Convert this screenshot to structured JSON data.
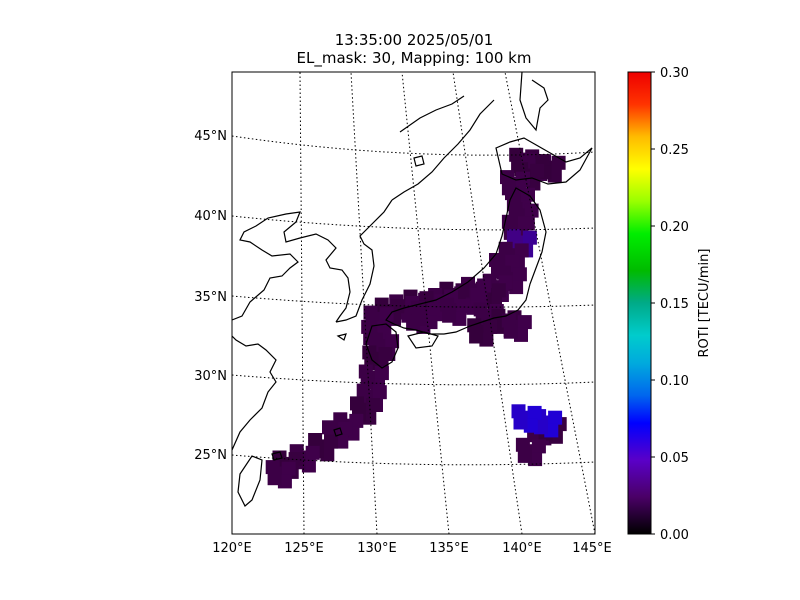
{
  "title": {
    "line1": "13:35:00 2025/05/01",
    "line2": "EL_mask: 30, Mapping: 100 km"
  },
  "chart_data": {
    "type": "heatmap",
    "map": {
      "lon_range": [
        120,
        145
      ],
      "lat_range": [
        20,
        49
      ],
      "lon_ticks": [
        "120°E",
        "125°E",
        "130°E",
        "135°E",
        "140°E",
        "145°E"
      ],
      "lat_ticks": [
        "25°N",
        "30°N",
        "35°N",
        "40°N",
        "45°N"
      ],
      "grid": true,
      "coastlines": true
    },
    "colorbar": {
      "label": "ROTI [TECU/min]",
      "range": [
        0.0,
        0.3
      ],
      "tick_labels": [
        "0.00",
        "0.05",
        "0.10",
        "0.15",
        "0.20",
        "0.25",
        "0.30"
      ],
      "colormap": "nipy_spectral"
    },
    "cells": [
      [
        141.2,
        43.4,
        0.02
      ],
      [
        142.0,
        43.1,
        0.03
      ],
      [
        143.0,
        43.0,
        0.02
      ],
      [
        141.5,
        42.5,
        0.02
      ],
      [
        140.5,
        42.0,
        0.03
      ],
      [
        140.8,
        41.0,
        0.03
      ],
      [
        141.0,
        40.0,
        0.03
      ],
      [
        140.5,
        39.2,
        0.03
      ],
      [
        140.8,
        38.3,
        0.04
      ],
      [
        140.2,
        37.5,
        0.03
      ],
      [
        139.5,
        36.8,
        0.03
      ],
      [
        140.0,
        36.0,
        0.03
      ],
      [
        139.0,
        35.5,
        0.03
      ],
      [
        138.5,
        35.0,
        0.02
      ],
      [
        137.5,
        35.3,
        0.03
      ],
      [
        137.0,
        34.7,
        0.03
      ],
      [
        136.0,
        35.0,
        0.02
      ],
      [
        135.2,
        34.6,
        0.03
      ],
      [
        134.5,
        34.3,
        0.03
      ],
      [
        133.5,
        34.5,
        0.02
      ],
      [
        132.5,
        34.2,
        0.03
      ],
      [
        131.5,
        34.0,
        0.02
      ],
      [
        130.7,
        33.5,
        0.03
      ],
      [
        130.5,
        32.6,
        0.03
      ],
      [
        131.0,
        31.8,
        0.03
      ],
      [
        130.5,
        31.0,
        0.02
      ],
      [
        133.5,
        33.5,
        0.03
      ],
      [
        134.0,
        33.8,
        0.03
      ],
      [
        136.0,
        34.0,
        0.03
      ],
      [
        138.3,
        33.7,
        0.03
      ],
      [
        139.5,
        33.3,
        0.02
      ],
      [
        140.2,
        33.0,
        0.03
      ],
      [
        137.8,
        32.7,
        0.02
      ],
      [
        130.2,
        29.8,
        0.03
      ],
      [
        130.0,
        28.6,
        0.03
      ],
      [
        129.5,
        27.8,
        0.02
      ],
      [
        128.3,
        26.8,
        0.03
      ],
      [
        127.5,
        26.3,
        0.03
      ],
      [
        126.5,
        25.5,
        0.02
      ],
      [
        125.2,
        24.8,
        0.03
      ],
      [
        124.0,
        24.4,
        0.02
      ],
      [
        123.5,
        23.8,
        0.03
      ],
      [
        141.5,
        26.5,
        0.03
      ],
      [
        142.3,
        26.6,
        0.02
      ],
      [
        140.8,
        25.2,
        0.03
      ],
      [
        142.0,
        27.0,
        0.06
      ],
      [
        140.6,
        27.3,
        0.06
      ]
    ]
  }
}
